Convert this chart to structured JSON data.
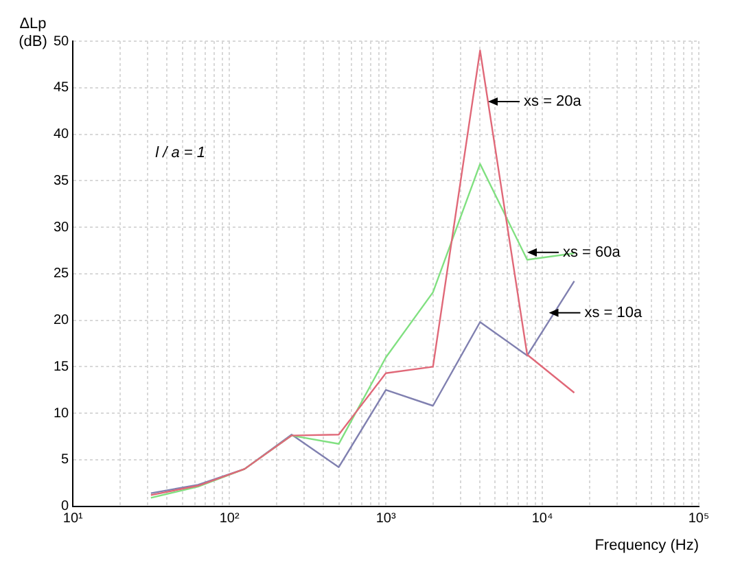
{
  "chart_data": {
    "type": "line",
    "xlabel": "Frequency (Hz)",
    "ylabel": "ΔLp\n(dB)",
    "log": "x",
    "xlim": [
      10,
      100000
    ],
    "xticks": [
      {
        "value": 10,
        "label": "10¹"
      },
      {
        "value": 20,
        "label": null
      },
      {
        "value": 30,
        "label": null
      },
      {
        "value": 40,
        "label": null
      },
      {
        "value": 50,
        "label": null
      },
      {
        "value": 60,
        "label": null
      },
      {
        "value": 70,
        "label": null
      },
      {
        "value": 80,
        "label": null
      },
      {
        "value": 90,
        "label": null
      },
      {
        "value": 100,
        "label": "10²"
      },
      {
        "value": 200,
        "label": null
      },
      {
        "value": 300,
        "label": null
      },
      {
        "value": 400,
        "label": null
      },
      {
        "value": 500,
        "label": null
      },
      {
        "value": 600,
        "label": null
      },
      {
        "value": 700,
        "label": null
      },
      {
        "value": 800,
        "label": null
      },
      {
        "value": 900,
        "label": null
      },
      {
        "value": 1000,
        "label": "10³"
      },
      {
        "value": 2000,
        "label": null
      },
      {
        "value": 3000,
        "label": null
      },
      {
        "value": 4000,
        "label": null
      },
      {
        "value": 5000,
        "label": null
      },
      {
        "value": 6000,
        "label": null
      },
      {
        "value": 7000,
        "label": null
      },
      {
        "value": 8000,
        "label": null
      },
      {
        "value": 9000,
        "label": null
      },
      {
        "value": 10000,
        "label": "10⁴"
      },
      {
        "value": 20000,
        "label": null
      },
      {
        "value": 30000,
        "label": null
      },
      {
        "value": 40000,
        "label": null
      },
      {
        "value": 50000,
        "label": null
      },
      {
        "value": 60000,
        "label": null
      },
      {
        "value": 70000,
        "label": null
      },
      {
        "value": 80000,
        "label": null
      },
      {
        "value": 90000,
        "label": null
      },
      {
        "value": 100000,
        "label": "10⁵"
      }
    ],
    "ylim": [
      0,
      50
    ],
    "yticks": [
      0,
      5,
      10,
      15,
      20,
      25,
      30,
      35,
      40,
      45,
      50
    ],
    "grid": true,
    "legend": false,
    "marker": "none",
    "line_style": "solid",
    "x": [
      31.5,
      63,
      125,
      250,
      500,
      1000,
      2000,
      4000,
      8000,
      16000
    ],
    "series": [
      {
        "color": "#e06878",
        "values": [
          1.2,
          2.2,
          4.0,
          7.6,
          7.7,
          14.3,
          15.0,
          49.0,
          16.3,
          12.2
        ]
      },
      {
        "color": "#80e080",
        "values": [
          0.9,
          2.1,
          4.0,
          7.6,
          6.7,
          16.0,
          23.0,
          36.8,
          26.5,
          27.2
        ]
      },
      {
        "color": "#8080b0",
        "values": [
          1.4,
          2.3,
          4.0,
          7.7,
          4.2,
          12.5,
          10.8,
          19.8,
          16.2,
          24.2
        ]
      }
    ],
    "annotations": [
      "l / a = 1",
      {
        "text": "xs = 20a",
        "x": 4500,
        "y": 43.5
      },
      {
        "text": "xs = 60a",
        "x": 8000,
        "y": 27.3
      },
      {
        "text": "xs = 10a",
        "x": 11000,
        "y": 20.8
      }
    ]
  }
}
